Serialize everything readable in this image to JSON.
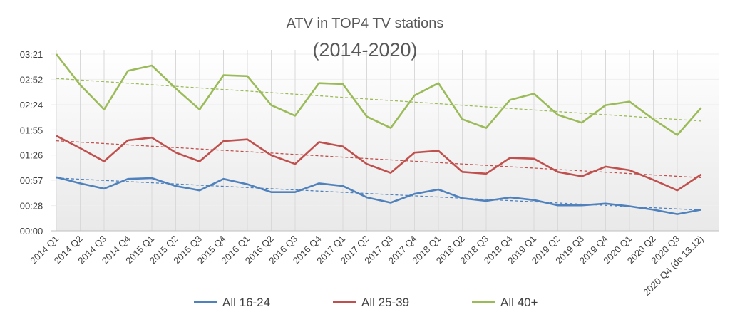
{
  "chart_data": {
    "type": "line",
    "title": "ATV in TOP4 TV stations",
    "subtitle": "(2014-2020)",
    "xlabel": "",
    "ylabel": "",
    "y_unit": "seconds (tick labels shown as mm:ss)",
    "ylim": [
      0,
      201
    ],
    "y_ticks": [
      "00:00",
      "00:28",
      "00:57",
      "01:26",
      "01:55",
      "02:24",
      "02:52",
      "03:21"
    ],
    "grid": "vertical lines at each category; light horizontal gridlines",
    "legend_position": "bottom",
    "trendlines": "linear, dashed, one per series",
    "categories": [
      "2014 Q1",
      "2014 Q2",
      "2014 Q3",
      "2014 Q4",
      "2015 Q1",
      "2015 Q2",
      "2015 Q3",
      "2015 Q4",
      "2016 Q1",
      "2016 Q2",
      "2016 Q3",
      "2016 Q4",
      "2017 Q1",
      "2017 Q2",
      "2017 Q3",
      "2017 Q4",
      "2018 Q1",
      "2018 Q2",
      "2018 Q3",
      "2018 Q4",
      "2019 Q1",
      "2019 Q2",
      "2019 Q3",
      "2019 Q4",
      "2020 Q1",
      "2020 Q2",
      "2020 Q3",
      "2020 Q4 (do 13.12)"
    ],
    "series": [
      {
        "name": "All 16-24",
        "color": "#4F81BD",
        "values": [
          61,
          54,
          48,
          59,
          60,
          51,
          46,
          59,
          53,
          44,
          44,
          54,
          51,
          38,
          32,
          42,
          47,
          37,
          34,
          38,
          35,
          29,
          29,
          31,
          28,
          24,
          19,
          24
        ]
      },
      {
        "name": "All 25-39",
        "color": "#C0504D",
        "values": [
          108,
          94,
          79,
          103,
          106,
          89,
          79,
          102,
          104,
          86,
          76,
          101,
          96,
          76,
          66,
          89,
          91,
          67,
          65,
          83,
          82,
          67,
          62,
          73,
          69,
          58,
          46,
          64
        ]
      },
      {
        "name": "All 40+",
        "color": "#9BBB59",
        "values": [
          201,
          166,
          138,
          182,
          188,
          162,
          138,
          177,
          176,
          143,
          131,
          168,
          167,
          130,
          117,
          154,
          168,
          127,
          117,
          149,
          156,
          132,
          123,
          143,
          147,
          127,
          109,
          140
        ]
      }
    ]
  }
}
